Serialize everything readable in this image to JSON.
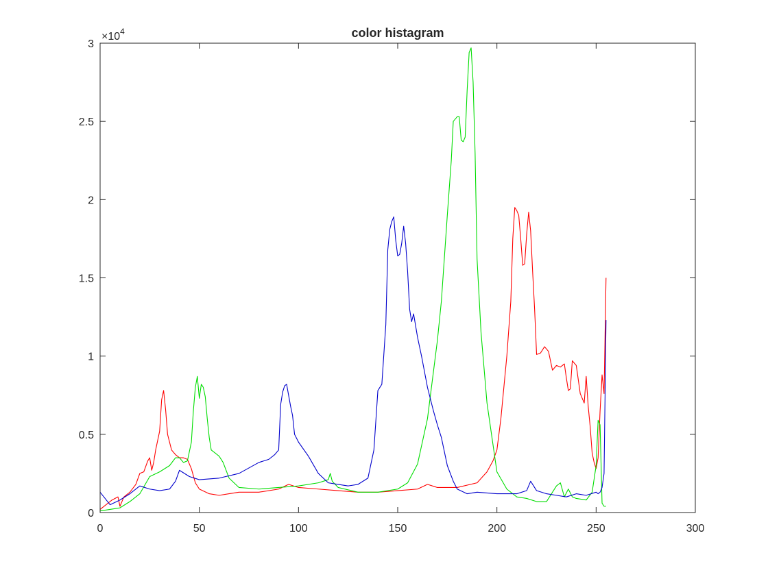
{
  "chart_data": {
    "type": "line",
    "title": "color histagram",
    "xlabel": "",
    "ylabel": "",
    "xlim": [
      0,
      300
    ],
    "ylim": [
      0,
      30000
    ],
    "x_ticks": [
      0,
      50,
      100,
      150,
      200,
      250,
      300
    ],
    "x_tick_labels": [
      "0",
      "50",
      "100",
      "150",
      "200",
      "250",
      "300"
    ],
    "y_ticks": [
      0,
      5000,
      10000,
      15000,
      20000,
      25000,
      30000
    ],
    "y_tick_labels": [
      "0",
      "0.5",
      "1",
      "1.5",
      "2",
      "2.5",
      "3"
    ],
    "y_exponent_base": "×10",
    "y_exponent_power": "4",
    "grid": false,
    "legend": "none",
    "series": [
      {
        "color": "#ff0000",
        "x": [
          0,
          3,
          6,
          9,
          10,
          12,
          15,
          18,
          20,
          22,
          24,
          25,
          26,
          27,
          28,
          30,
          31,
          32,
          33,
          34,
          36,
          38,
          40,
          42,
          44,
          46,
          48,
          50,
          55,
          60,
          65,
          70,
          80,
          90,
          95,
          100,
          110,
          120,
          130,
          140,
          150,
          160,
          165,
          170,
          180,
          190,
          195,
          198,
          200,
          202,
          205,
          207,
          208,
          209,
          210,
          211,
          212,
          213,
          214,
          215,
          216,
          217,
          218,
          219,
          220,
          222,
          224,
          226,
          228,
          230,
          232,
          234,
          235,
          236,
          237,
          238,
          240,
          242,
          244,
          245,
          246,
          247,
          248,
          249,
          250,
          251,
          252,
          253,
          254,
          255
        ],
        "y": [
          200,
          500,
          800,
          1000,
          400,
          1000,
          1300,
          1800,
          2500,
          2600,
          3300,
          3500,
          2700,
          3200,
          4000,
          5200,
          7200,
          7800,
          6600,
          5000,
          4000,
          3700,
          3500,
          3500,
          3400,
          2800,
          1900,
          1500,
          1200,
          1100,
          1200,
          1300,
          1300,
          1500,
          1800,
          1600,
          1500,
          1400,
          1300,
          1300,
          1400,
          1500,
          1800,
          1600,
          1600,
          1900,
          2600,
          3300,
          4000,
          6000,
          10000,
          13500,
          17500,
          19500,
          19300,
          19000,
          17500,
          15800,
          15900,
          17800,
          19200,
          18000,
          15400,
          13000,
          10100,
          10200,
          10600,
          10300,
          9100,
          9400,
          9300,
          9500,
          8600,
          7800,
          7900,
          9700,
          9400,
          7600,
          7000,
          8700,
          6800,
          5500,
          3800,
          3200,
          2800,
          3500,
          6500,
          8800,
          7600,
          15000
        ]
      },
      {
        "color": "#00dd00",
        "x": [
          0,
          5,
          10,
          15,
          20,
          25,
          30,
          35,
          38,
          40,
          42,
          44,
          46,
          47,
          48,
          49,
          50,
          51,
          52,
          53,
          54,
          55,
          56,
          58,
          60,
          62,
          65,
          70,
          80,
          90,
          100,
          110,
          115,
          116,
          117,
          120,
          130,
          140,
          150,
          155,
          160,
          165,
          170,
          172,
          175,
          177,
          178,
          180,
          181,
          182,
          183,
          184,
          185,
          186,
          187,
          188,
          189,
          190,
          192,
          195,
          200,
          205,
          210,
          215,
          220,
          225,
          230,
          232,
          234,
          236,
          238,
          240,
          245,
          248,
          250,
          251,
          252,
          253,
          254,
          255
        ],
        "y": [
          100,
          200,
          300,
          700,
          1200,
          2300,
          2600,
          3000,
          3500,
          3500,
          3200,
          3300,
          4500,
          6500,
          8000,
          8700,
          7300,
          8200,
          8000,
          7400,
          6000,
          4800,
          4000,
          3800,
          3600,
          3200,
          2200,
          1600,
          1500,
          1600,
          1700,
          1900,
          2100,
          2500,
          2000,
          1600,
          1300,
          1300,
          1500,
          1900,
          3100,
          6000,
          11000,
          13500,
          19000,
          22500,
          25000,
          25300,
          25300,
          23800,
          23700,
          24000,
          27000,
          29400,
          29700,
          27500,
          23000,
          16200,
          11500,
          7000,
          2600,
          1500,
          1000,
          900,
          700,
          700,
          1700,
          1900,
          1000,
          1500,
          1000,
          900,
          800,
          1300,
          3000,
          5900,
          5600,
          600,
          400,
          400
        ]
      },
      {
        "color": "#0000cc",
        "x": [
          0,
          5,
          10,
          15,
          20,
          25,
          30,
          35,
          38,
          40,
          45,
          50,
          60,
          70,
          80,
          85,
          88,
          90,
          91,
          92,
          93,
          94,
          95,
          96,
          97,
          98,
          100,
          105,
          110,
          115,
          120,
          125,
          130,
          135,
          138,
          140,
          142,
          144,
          145,
          146,
          147,
          148,
          149,
          150,
          151,
          152,
          153,
          154,
          155,
          156,
          157,
          158,
          160,
          162,
          165,
          168,
          170,
          172,
          175,
          178,
          180,
          185,
          190,
          200,
          210,
          215,
          217,
          220,
          225,
          230,
          235,
          240,
          245,
          250,
          251,
          252,
          253,
          254,
          255
        ],
        "y": [
          1300,
          500,
          800,
          1200,
          1700,
          1500,
          1400,
          1500,
          2000,
          2700,
          2300,
          2100,
          2200,
          2500,
          3200,
          3400,
          3700,
          4000,
          6900,
          7700,
          8100,
          8200,
          7500,
          6800,
          6200,
          5000,
          4500,
          3600,
          2500,
          1900,
          1800,
          1700,
          1800,
          2200,
          4000,
          7800,
          8200,
          12000,
          16800,
          18100,
          18600,
          18900,
          17400,
          16400,
          16500,
          17200,
          18300,
          17200,
          15400,
          13000,
          12200,
          12700,
          11200,
          10000,
          8000,
          6500,
          5600,
          4800,
          3000,
          2000,
          1500,
          1200,
          1300,
          1200,
          1200,
          1400,
          2000,
          1400,
          1200,
          1100,
          1000,
          1200,
          1100,
          1300,
          1200,
          1300,
          1600,
          2500,
          12300
        ]
      }
    ]
  }
}
